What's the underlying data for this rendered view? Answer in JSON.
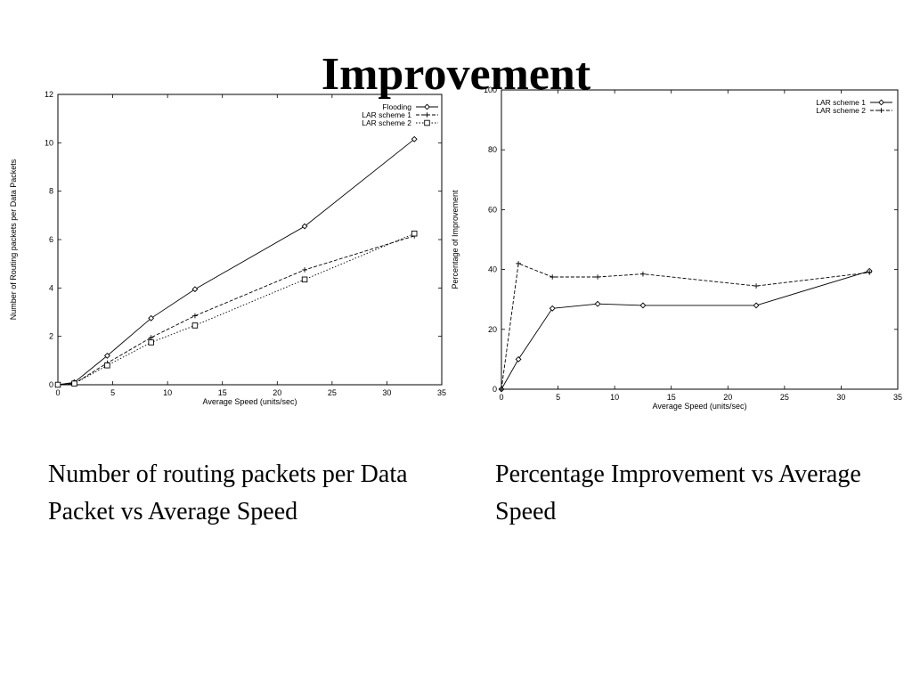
{
  "slide": {
    "title": "Improvement",
    "captions": [
      "Number of routing packets per Data Packet vs Average Speed",
      "Percentage Improvement vs Average Speed"
    ]
  },
  "chart_data": [
    {
      "type": "line",
      "xlabel": "Average Speed (units/sec)",
      "ylabel": "Number of Routing packets per Data Packets",
      "xlim": [
        0,
        35
      ],
      "ylim": [
        0,
        12
      ],
      "xticks": [
        0,
        5,
        10,
        15,
        20,
        25,
        30,
        35
      ],
      "yticks": [
        0,
        2,
        4,
        6,
        8,
        10,
        12
      ],
      "grid": false,
      "legend": "top-right",
      "series": [
        {
          "name": "Flooding",
          "marker": "diamond",
          "dash": "solid",
          "x": [
            0,
            1.5,
            4.5,
            8.5,
            12.5,
            22.5,
            32.5
          ],
          "y": [
            0,
            0.1,
            1.2,
            2.75,
            3.95,
            6.55,
            10.15
          ]
        },
        {
          "name": "LAR scheme 1",
          "marker": "plus",
          "dash": "dashed",
          "x": [
            0,
            1.5,
            4.5,
            8.5,
            12.5,
            22.5,
            32.5
          ],
          "y": [
            0,
            0.05,
            0.9,
            1.95,
            2.85,
            4.75,
            6.15
          ]
        },
        {
          "name": "LAR scheme 2",
          "marker": "square",
          "dash": "dotted",
          "x": [
            0,
            1.5,
            4.5,
            8.5,
            12.5,
            22.5,
            32.5
          ],
          "y": [
            0,
            0.05,
            0.8,
            1.75,
            2.45,
            4.35,
            6.25
          ]
        }
      ]
    },
    {
      "type": "line",
      "xlabel": "Average Speed (units/sec)",
      "ylabel": "Percentage of Improvement",
      "xlim": [
        0,
        35
      ],
      "ylim": [
        0,
        100
      ],
      "xticks": [
        0,
        5,
        10,
        15,
        20,
        25,
        30,
        35
      ],
      "yticks": [
        0,
        20,
        40,
        60,
        80,
        100
      ],
      "grid": false,
      "legend": "top-right",
      "series": [
        {
          "name": "LAR scheme 1",
          "marker": "diamond",
          "dash": "solid",
          "x": [
            0,
            1.5,
            4.5,
            8.5,
            12.5,
            22.5,
            32.5
          ],
          "y": [
            0,
            10,
            27,
            28.5,
            28,
            28,
            39.5
          ]
        },
        {
          "name": "LAR scheme 2",
          "marker": "plus",
          "dash": "dashed",
          "x": [
            0,
            1.5,
            4.5,
            8.5,
            12.5,
            22.5,
            32.5
          ],
          "y": [
            0,
            42,
            37.5,
            37.5,
            38.5,
            34.5,
            39
          ]
        }
      ]
    }
  ]
}
